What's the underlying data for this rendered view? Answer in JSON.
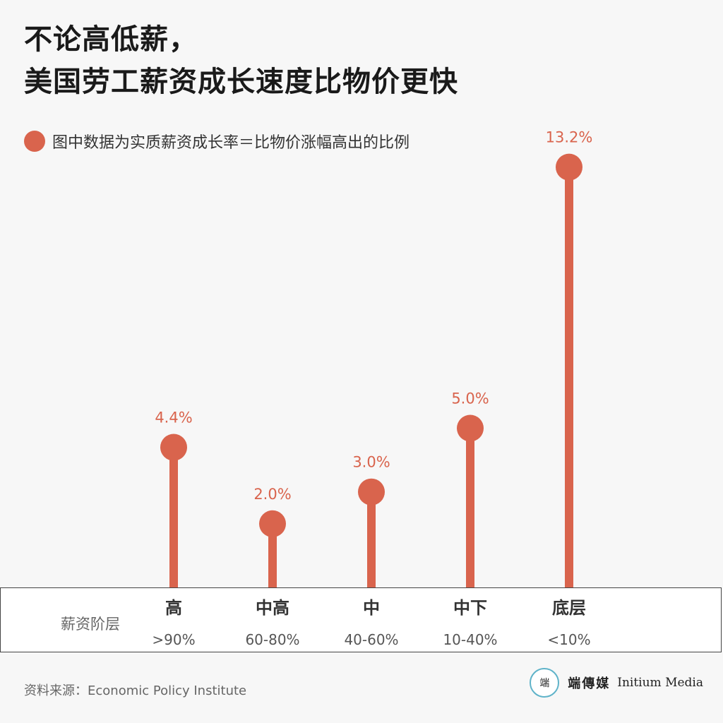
{
  "title": {
    "line1": "不论高低薪，",
    "line2": "美国劳工薪资成长速度比物价更快"
  },
  "legend": {
    "text": "图中数据为实质薪资成长率＝比物价涨幅高出的比例",
    "color": "#d9644d"
  },
  "axis": {
    "row_label": "薪资阶层"
  },
  "chart_data": {
    "type": "lollipop",
    "categories": [
      "高",
      "中高",
      "中",
      "中下",
      "底层"
    ],
    "ranges": [
      ">90%",
      "60-80%",
      "40-60%",
      "10-40%",
      "<10%"
    ],
    "values": [
      4.4,
      2.0,
      3.0,
      5.0,
      13.2
    ],
    "labels": [
      "4.4%",
      "2.0%",
      "3.0%",
      "5.0%",
      "13.2%"
    ],
    "color": "#d9644d"
  },
  "footer": {
    "source": "资料来源：Economic Policy Institute",
    "brand_logo": "端",
    "brand_cn": "端傳媒",
    "brand_en": "Initium Media"
  }
}
